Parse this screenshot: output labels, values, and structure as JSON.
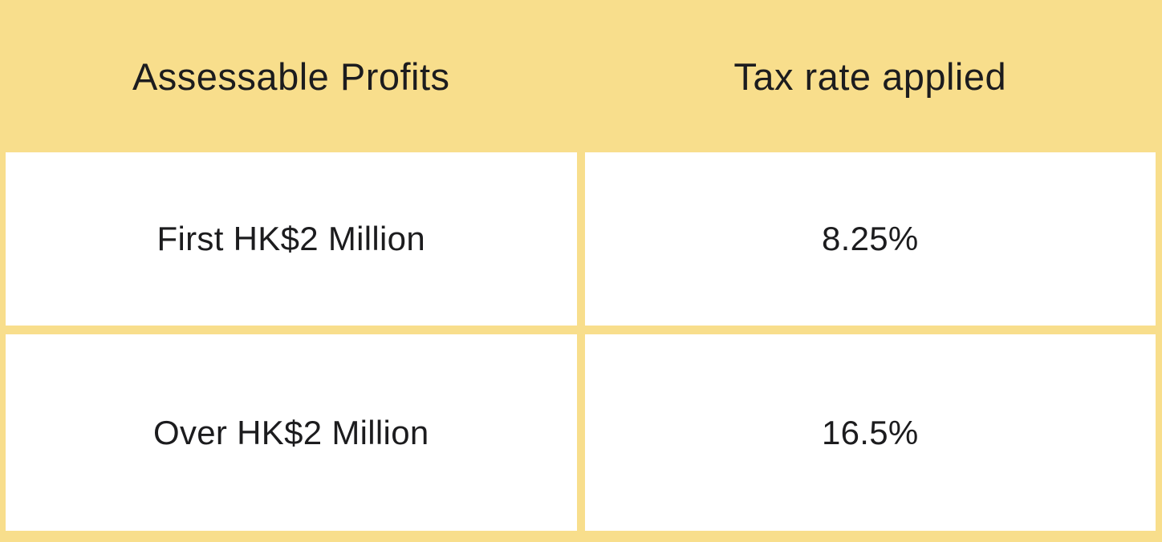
{
  "chart_data": {
    "type": "table",
    "title": "",
    "columns": [
      "Assessable Profits",
      "Tax rate applied"
    ],
    "rows": [
      [
        "First HK$2 Million",
        "8.25%"
      ],
      [
        "Over HK$2 Million",
        "16.5%"
      ]
    ]
  },
  "colors": {
    "background_yellow": "#F8DE8C",
    "cell_background": "#FFFFFF",
    "text": "#1C1C1E"
  }
}
